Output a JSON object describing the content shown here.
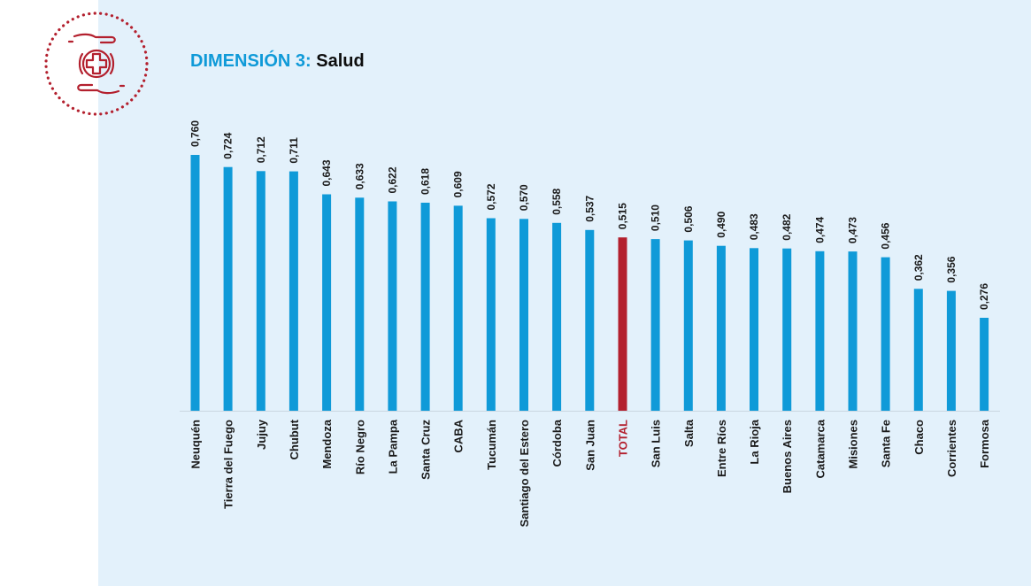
{
  "header": {
    "lead": "DIMENSIÓN 3:",
    "title": "Salud",
    "icon": "care-hands-cross-icon"
  },
  "colors": {
    "bar": "#0f9ad8",
    "highlight": "#b3202e",
    "panel": "#e3f1fb",
    "lead_text": "#0f9ad8",
    "badge": "#b3202e"
  },
  "chart_data": {
    "type": "bar",
    "orientation": "vertical",
    "categories": [
      "Neuquén",
      "Tierra del Fuego",
      "Jujuy",
      "Chubut",
      "Mendoza",
      "Río Negro",
      "La Pampa",
      "Santa Cruz",
      "CABA",
      "Tucumán",
      "Santiago del Estero",
      "Córdoba",
      "San Juan",
      "TOTAL",
      "San Luis",
      "Salta",
      "Entre Ríos",
      "La Rioja",
      "Buenos Aires",
      "Catamarca",
      "Misiones",
      "Santa Fe",
      "Chaco",
      "Corrientes",
      "Formosa"
    ],
    "values": [
      0.76,
      0.724,
      0.712,
      0.711,
      0.643,
      0.633,
      0.622,
      0.618,
      0.609,
      0.572,
      0.57,
      0.558,
      0.537,
      0.515,
      0.51,
      0.506,
      0.49,
      0.483,
      0.482,
      0.474,
      0.473,
      0.456,
      0.362,
      0.356,
      0.276
    ],
    "labels": [
      "0,760",
      "0,724",
      "0,712",
      "0,711",
      "0,643",
      "0,633",
      "0,622",
      "0,618",
      "0,609",
      "0,572",
      "0,570",
      "0,558",
      "0,537",
      "0,515",
      "0,510",
      "0,506",
      "0,490",
      "0,483",
      "0,482",
      "0,474",
      "0,473",
      "0,456",
      "0,362",
      "0,356",
      "0,276"
    ],
    "highlight": "TOTAL",
    "ylim": [
      0,
      0.76
    ],
    "grid": false,
    "legend": "none"
  }
}
